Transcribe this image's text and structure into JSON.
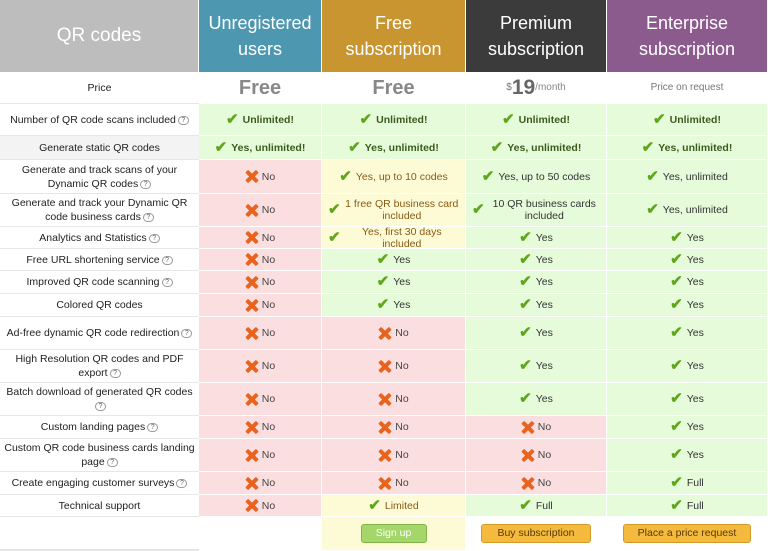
{
  "header": {
    "corner": "QR codes",
    "plans": [
      {
        "name": "Unregistered users"
      },
      {
        "name": "Free subscription"
      },
      {
        "name": "Premium subscription"
      },
      {
        "name": "Enterprise subscription"
      }
    ]
  },
  "price": {
    "label": "Price",
    "unregistered": "Free",
    "free": "Free",
    "premium_currency": "$",
    "premium_amount": "19",
    "premium_period": "/month",
    "enterprise": "Price on request"
  },
  "rows": [
    {
      "label": "Number of QR code scans included",
      "help": true,
      "cells": [
        {
          "text": "Unlimited!",
          "status": "yes",
          "bold": true
        },
        {
          "text": "Unlimited!",
          "status": "yes",
          "bold": true
        },
        {
          "text": "Unlimited!",
          "status": "yes",
          "bold": true
        },
        {
          "text": "Unlimited!",
          "status": "yes",
          "bold": true
        }
      ]
    },
    {
      "label": "Generate static QR codes",
      "help": false,
      "cells": [
        {
          "text": "Yes, unlimited!",
          "status": "yes",
          "bold": true
        },
        {
          "text": "Yes, unlimited!",
          "status": "yes",
          "bold": true
        },
        {
          "text": "Yes, unlimited!",
          "status": "yes",
          "bold": true
        },
        {
          "text": "Yes, unlimited!",
          "status": "yes",
          "bold": true
        }
      ]
    },
    {
      "label": "Generate and track scans of your Dynamic QR codes",
      "help": true,
      "cells": [
        {
          "text": "No",
          "status": "no"
        },
        {
          "text": "Yes, up to 10 codes",
          "status": "limited"
        },
        {
          "text": "Yes, up to 50 codes",
          "status": "yes"
        },
        {
          "text": "Yes, unlimited",
          "status": "yes"
        }
      ]
    },
    {
      "label": "Generate and track your Dynamic QR code business cards",
      "help": true,
      "cells": [
        {
          "text": "No",
          "status": "no"
        },
        {
          "text": "1 free QR business card included",
          "status": "limited"
        },
        {
          "text": "10 QR business cards included",
          "status": "yes"
        },
        {
          "text": "Yes, unlimited",
          "status": "yes"
        }
      ]
    },
    {
      "label": "Analytics and Statistics",
      "help": true,
      "cells": [
        {
          "text": "No",
          "status": "no"
        },
        {
          "text": "Yes, first 30 days included",
          "status": "limited"
        },
        {
          "text": "Yes",
          "status": "yes"
        },
        {
          "text": "Yes",
          "status": "yes"
        }
      ]
    },
    {
      "label": "Free URL shortening service",
      "help": true,
      "cells": [
        {
          "text": "No",
          "status": "no"
        },
        {
          "text": "Yes",
          "status": "yes"
        },
        {
          "text": "Yes",
          "status": "yes"
        },
        {
          "text": "Yes",
          "status": "yes"
        }
      ]
    },
    {
      "label": "Improved QR code scanning",
      "help": true,
      "cells": [
        {
          "text": "No",
          "status": "no"
        },
        {
          "text": "Yes",
          "status": "yes"
        },
        {
          "text": "Yes",
          "status": "yes"
        },
        {
          "text": "Yes",
          "status": "yes"
        }
      ]
    },
    {
      "label": "Colored QR codes",
      "help": false,
      "cells": [
        {
          "text": "No",
          "status": "no"
        },
        {
          "text": "Yes",
          "status": "yes"
        },
        {
          "text": "Yes",
          "status": "yes"
        },
        {
          "text": "Yes",
          "status": "yes"
        }
      ]
    },
    {
      "label": "Ad-free dynamic QR code redirection",
      "help": true,
      "cells": [
        {
          "text": "No",
          "status": "no"
        },
        {
          "text": "No",
          "status": "no"
        },
        {
          "text": "Yes",
          "status": "yes"
        },
        {
          "text": "Yes",
          "status": "yes"
        }
      ]
    },
    {
      "label": "High Resolution QR codes and PDF export",
      "help": true,
      "cells": [
        {
          "text": "No",
          "status": "no"
        },
        {
          "text": "No",
          "status": "no"
        },
        {
          "text": "Yes",
          "status": "yes"
        },
        {
          "text": "Yes",
          "status": "yes"
        }
      ]
    },
    {
      "label": "Batch download of generated QR codes",
      "help": true,
      "cells": [
        {
          "text": "No",
          "status": "no"
        },
        {
          "text": "No",
          "status": "no"
        },
        {
          "text": "Yes",
          "status": "yes"
        },
        {
          "text": "Yes",
          "status": "yes"
        }
      ]
    },
    {
      "label": "Custom landing pages",
      "help": true,
      "cells": [
        {
          "text": "No",
          "status": "no"
        },
        {
          "text": "No",
          "status": "no"
        },
        {
          "text": "No",
          "status": "no"
        },
        {
          "text": "Yes",
          "status": "yes"
        }
      ]
    },
    {
      "label": "Custom QR code business cards landing page",
      "help": true,
      "cells": [
        {
          "text": "No",
          "status": "no"
        },
        {
          "text": "No",
          "status": "no"
        },
        {
          "text": "No",
          "status": "no"
        },
        {
          "text": "Yes",
          "status": "yes"
        }
      ]
    },
    {
      "label": "Create engaging customer surveys",
      "help": true,
      "cells": [
        {
          "text": "No",
          "status": "no"
        },
        {
          "text": "No",
          "status": "no"
        },
        {
          "text": "No",
          "status": "no"
        },
        {
          "text": "Full",
          "status": "yes"
        }
      ]
    },
    {
      "label": "Technical support",
      "help": false,
      "cells": [
        {
          "text": "No",
          "status": "no"
        },
        {
          "text": "Limited",
          "status": "limited"
        },
        {
          "text": "Full",
          "status": "yes"
        },
        {
          "text": "Full",
          "status": "yes"
        }
      ]
    }
  ],
  "actions": {
    "free": "Sign up",
    "premium": "Buy subscription",
    "enterprise": "Place a price request"
  },
  "colors": {
    "unregistered_header": "#4e97b1",
    "free_header": "#c99531",
    "premium_header": "#3b3b3b",
    "enterprise_header": "#8c5b8d",
    "yes_bg": "#e5fbd9",
    "no_bg": "#fbdfe0",
    "limited_bg": "#fdfbd6"
  }
}
